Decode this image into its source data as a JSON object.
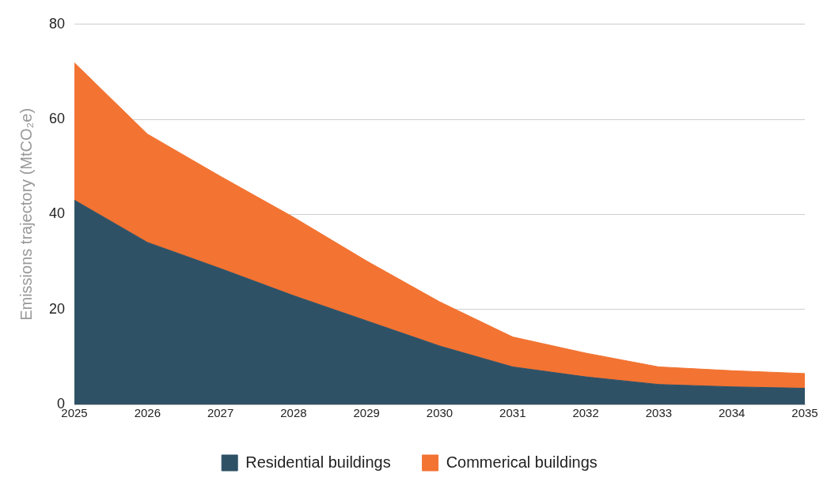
{
  "chart_data": {
    "type": "area",
    "ylabel": "Emissions trajectory (MtCO₂e)",
    "x": [
      2025,
      2026,
      2027,
      2028,
      2029,
      2030,
      2031,
      2032,
      2033,
      2034,
      2035
    ],
    "series": [
      {
        "name": "Residential buildings",
        "color": "#2e5166",
        "values": [
          43.0,
          34.1,
          28.6,
          22.9,
          17.6,
          12.3,
          7.9,
          5.8,
          4.2,
          3.7,
          3.4
        ]
      },
      {
        "name": "Commerical buildings",
        "color": "#f37332",
        "values": [
          28.9,
          22.8,
          19.4,
          16.5,
          12.6,
          9.3,
          6.3,
          5.0,
          3.7,
          3.4,
          3.1
        ]
      }
    ],
    "stacked": true,
    "xlim": [
      2025,
      2035
    ],
    "xticks": [
      2025,
      2026,
      2027,
      2028,
      2029,
      2030,
      2031,
      2032,
      2033,
      2034,
      2035
    ],
    "ylim": [
      0,
      80
    ],
    "yticks": [
      0,
      20,
      40,
      60,
      80
    ],
    "grid": "y",
    "legend": "bottom"
  }
}
